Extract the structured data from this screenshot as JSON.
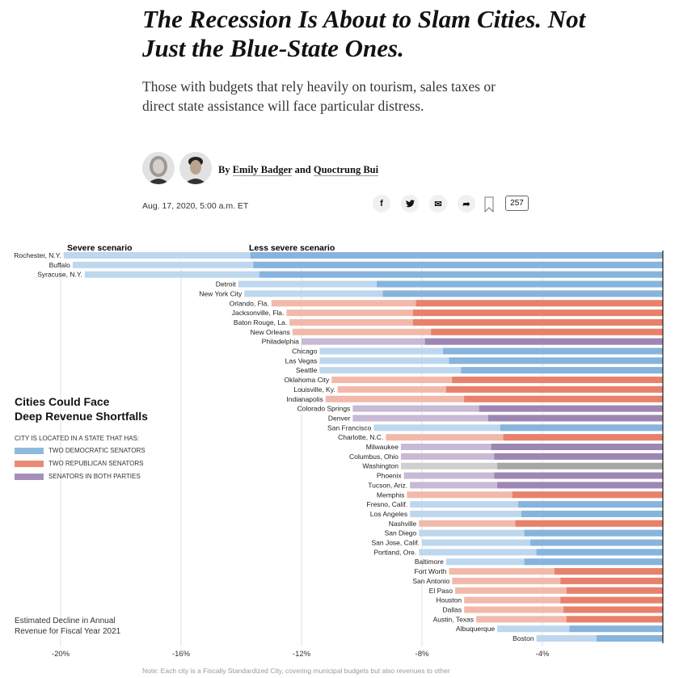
{
  "headline": "The Recession Is About to Slam Cities. Not Just the Blue-State Ones.",
  "subheadline": "Those with budgets that rely heavily on tourism, sales taxes or direct state assistance will face particular distress.",
  "byline": {
    "prefix": "By ",
    "author1": "Emily Badger",
    "connector": " and ",
    "author2": "Quoctrung Bui"
  },
  "date": "Aug. 17, 2020, 5:00 a.m. ET",
  "share": {
    "icons": [
      "facebook-icon",
      "twitter-icon",
      "email-icon",
      "share-icon",
      "bookmark-icon"
    ],
    "facebook": "f",
    "twitter": "🐦",
    "email": "✉",
    "share_glyph": "➦",
    "comment_count": "257"
  },
  "legend": {
    "title_line1": "Cities Could Face",
    "title_line2": "Deep Revenue Shortfalls",
    "heading": "CITY IS LOCATED IN A STATE THAT HAS:",
    "items": [
      {
        "label": "TWO DEMOCRATIC SENATORS",
        "color": "#8db9df"
      },
      {
        "label": "TWO REPUBLICAN SENATORS",
        "color": "#ea8a74"
      },
      {
        "label": "SENATORS IN BOTH PARTIES",
        "color": "#a690bb"
      }
    ]
  },
  "estimate_line1": "Estimated Decline in Annual",
  "estimate_line2": "Revenue for Fiscal Year 2021",
  "note": "Note: Each city is a Fiscally Standardized City, covering municipal budgets but also revenues to other",
  "colors": {
    "D": {
      "light": "#bdd7ee",
      "dark": "#86b4dc"
    },
    "R": {
      "light": "#f2b9aa",
      "dark": "#e8816b"
    },
    "M": {
      "light": "#c8b9d6",
      "dark": "#9e86b4"
    },
    "N": {
      "light": "#cfcfcf",
      "dark": "#a6a6a6"
    }
  },
  "chart_data": {
    "type": "bar",
    "orientation": "horizontal",
    "series_labels": {
      "severe": "Severe scenario",
      "less_severe": "Less severe scenario"
    },
    "xlim": [
      -20.8,
      0
    ],
    "xticks": [
      -20,
      -16,
      -12,
      -8,
      -4
    ],
    "xtick_labels": [
      "-20%",
      "-16%",
      "-12%",
      "-8%",
      "-4%"
    ],
    "grid": true,
    "cities": [
      {
        "name": "Rochester, N.Y.",
        "party": "D",
        "severe": -19.9,
        "less_severe": -13.7
      },
      {
        "name": "Buffalo",
        "party": "D",
        "severe": -19.6,
        "less_severe": -13.6
      },
      {
        "name": "Syracuse, N.Y.",
        "party": "D",
        "severe": -19.2,
        "less_severe": -13.4
      },
      {
        "name": "Detroit",
        "party": "D",
        "severe": -14.1,
        "less_severe": -9.5
      },
      {
        "name": "New York City",
        "party": "D",
        "severe": -13.9,
        "less_severe": -9.3
      },
      {
        "name": "Orlando, Fla.",
        "party": "R",
        "severe": -13.0,
        "less_severe": -8.2
      },
      {
        "name": "Jacksonville, Fla.",
        "party": "R",
        "severe": -12.5,
        "less_severe": -8.3
      },
      {
        "name": "Baton Rouge, La.",
        "party": "R",
        "severe": -12.4,
        "less_severe": -8.3
      },
      {
        "name": "New Orleans",
        "party": "R",
        "severe": -12.3,
        "less_severe": -7.7
      },
      {
        "name": "Philadelphia",
        "party": "M",
        "severe": -12.0,
        "less_severe": -7.9
      },
      {
        "name": "Chicago",
        "party": "D",
        "severe": -11.4,
        "less_severe": -7.3
      },
      {
        "name": "Las Vegas",
        "party": "D",
        "severe": -11.4,
        "less_severe": -7.1
      },
      {
        "name": "Seattle",
        "party": "D",
        "severe": -11.4,
        "less_severe": -6.7
      },
      {
        "name": "Oklahoma City",
        "party": "R",
        "severe": -11.0,
        "less_severe": -7.0
      },
      {
        "name": "Louisville, Ky.",
        "party": "R",
        "severe": -10.8,
        "less_severe": -7.2
      },
      {
        "name": "Indianapolis",
        "party": "R",
        "severe": -11.2,
        "less_severe": -6.6
      },
      {
        "name": "Colorado Springs",
        "party": "M",
        "severe": -10.3,
        "less_severe": -6.1
      },
      {
        "name": "Denver",
        "party": "M",
        "severe": -10.3,
        "less_severe": -5.8
      },
      {
        "name": "San Francisco",
        "party": "D",
        "severe": -9.6,
        "less_severe": -5.4
      },
      {
        "name": "Charlotte, N.C.",
        "party": "R",
        "severe": -9.2,
        "less_severe": -5.3
      },
      {
        "name": "Milwaukee",
        "party": "M",
        "severe": -8.7,
        "less_severe": -5.7
      },
      {
        "name": "Columbus, Ohio",
        "party": "M",
        "severe": -8.7,
        "less_severe": -5.6
      },
      {
        "name": "Washington",
        "party": "N",
        "severe": -8.7,
        "less_severe": -5.5
      },
      {
        "name": "Phoenix",
        "party": "M",
        "severe": -8.6,
        "less_severe": -5.6
      },
      {
        "name": "Tucson, Ariz.",
        "party": "M",
        "severe": -8.4,
        "less_severe": -5.5
      },
      {
        "name": "Memphis",
        "party": "R",
        "severe": -8.5,
        "less_severe": -5.0
      },
      {
        "name": "Fresno, Calif.",
        "party": "D",
        "severe": -8.4,
        "less_severe": -4.8
      },
      {
        "name": "Los Angeles",
        "party": "D",
        "severe": -8.4,
        "less_severe": -4.7
      },
      {
        "name": "Nashville",
        "party": "R",
        "severe": -8.1,
        "less_severe": -4.9
      },
      {
        "name": "San Diego",
        "party": "D",
        "severe": -8.1,
        "less_severe": -4.6
      },
      {
        "name": "San Jose, Calif.",
        "party": "D",
        "severe": -8.0,
        "less_severe": -4.4
      },
      {
        "name": "Portland, Ore.",
        "party": "D",
        "severe": -8.1,
        "less_severe": -4.2
      },
      {
        "name": "Baltimore",
        "party": "D",
        "severe": -7.2,
        "less_severe": -4.6
      },
      {
        "name": "Fort Worth",
        "party": "R",
        "severe": -7.1,
        "less_severe": -3.6
      },
      {
        "name": "San Antonio",
        "party": "R",
        "severe": -7.0,
        "less_severe": -3.4
      },
      {
        "name": "El Paso",
        "party": "R",
        "severe": -6.9,
        "less_severe": -3.2
      },
      {
        "name": "Houston",
        "party": "R",
        "severe": -6.6,
        "less_severe": -3.4
      },
      {
        "name": "Dallas",
        "party": "R",
        "severe": -6.6,
        "less_severe": -3.3
      },
      {
        "name": "Austin, Texas",
        "party": "R",
        "severe": -6.2,
        "less_severe": -3.2
      },
      {
        "name": "Albuquerque",
        "party": "D",
        "severe": -5.5,
        "less_severe": -3.1
      },
      {
        "name": "Boston",
        "party": "D",
        "severe": -4.2,
        "less_severe": -2.2
      }
    ]
  }
}
